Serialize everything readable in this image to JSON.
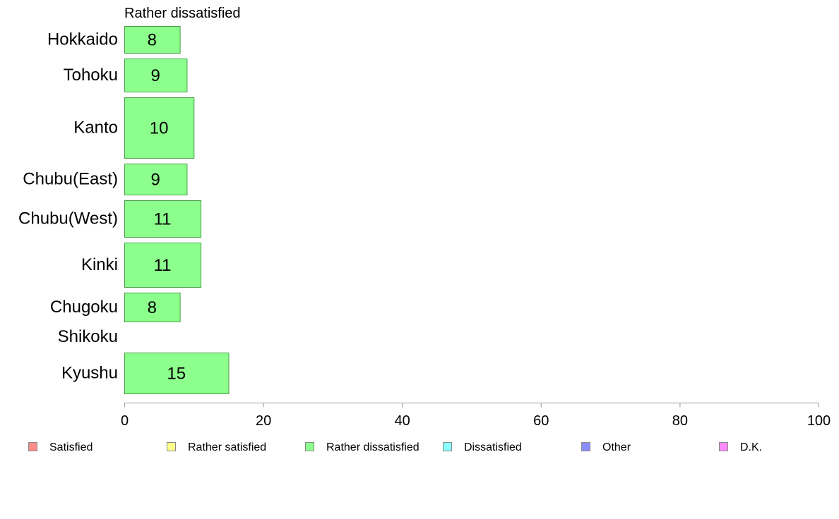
{
  "chart_data": {
    "type": "bar",
    "orientation": "horizontal",
    "title": "Rather dissatisfied",
    "categories": [
      "Hokkaido",
      "Tohoku",
      "Kanto",
      "Chubu(East)",
      "Chubu(West)",
      "Kinki",
      "Chugoku",
      "Shikoku",
      "Kyushu"
    ],
    "values": [
      8,
      9,
      10,
      9,
      11,
      11,
      8,
      0,
      15
    ],
    "data_labels": [
      "8",
      "9",
      "10",
      "9",
      "11",
      "11",
      "8",
      "",
      "15"
    ],
    "xlim": [
      0,
      100
    ],
    "xticks": [
      "0",
      "20",
      "40",
      "60",
      "80",
      "100"
    ],
    "bar_color": "#8cff8c",
    "bar_stroke": "#4a9e4a",
    "axis_color": "#999999",
    "grid": false,
    "legend_placement": "bottom",
    "legend": [
      {
        "name": "Satisfied",
        "color": "#ff8c8c"
      },
      {
        "name": "Rather satisfied",
        "color": "#ffff8c"
      },
      {
        "name": "Rather dissatisfied",
        "color": "#8cff8c"
      },
      {
        "name": "Dissatisfied",
        "color": "#8cffff"
      },
      {
        "name": "Other",
        "color": "#8c8cff"
      },
      {
        "name": "D.K.",
        "color": "#ff8cff"
      }
    ]
  }
}
